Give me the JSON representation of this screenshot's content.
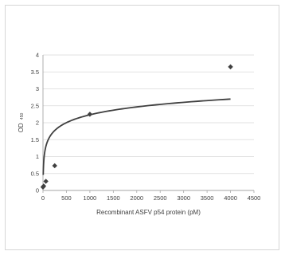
{
  "chart_data": {
    "type": "scatter",
    "xlabel": "Recombinant ASFV p54 protein (pM)",
    "ylabel_main": "OD",
    "ylabel_sub": "450",
    "xlim": [
      0,
      4500
    ],
    "ylim": [
      0,
      4
    ],
    "x_ticks": [
      0,
      500,
      1000,
      1500,
      2000,
      2500,
      3000,
      3500,
      4000,
      4500
    ],
    "y_ticks": [
      0,
      0.5,
      1,
      1.5,
      2,
      2.5,
      3,
      3.5,
      4
    ],
    "grid": true,
    "legend": "none",
    "series": [
      {
        "marker": "diamond",
        "color": "#404040",
        "points": [
          {
            "x": 0,
            "y": 0.1
          },
          {
            "x": 15,
            "y": 0.13
          },
          {
            "x": 62,
            "y": 0.27
          },
          {
            "x": 250,
            "y": 0.73
          },
          {
            "x": 1000,
            "y": 2.25
          },
          {
            "x": 4000,
            "y": 3.65
          }
        ]
      }
    ],
    "trendline": {
      "type": "logarithmic",
      "color": "#404040",
      "x_start": 5,
      "x_end": 4000,
      "a": 0.335,
      "b": -0.08
    }
  }
}
